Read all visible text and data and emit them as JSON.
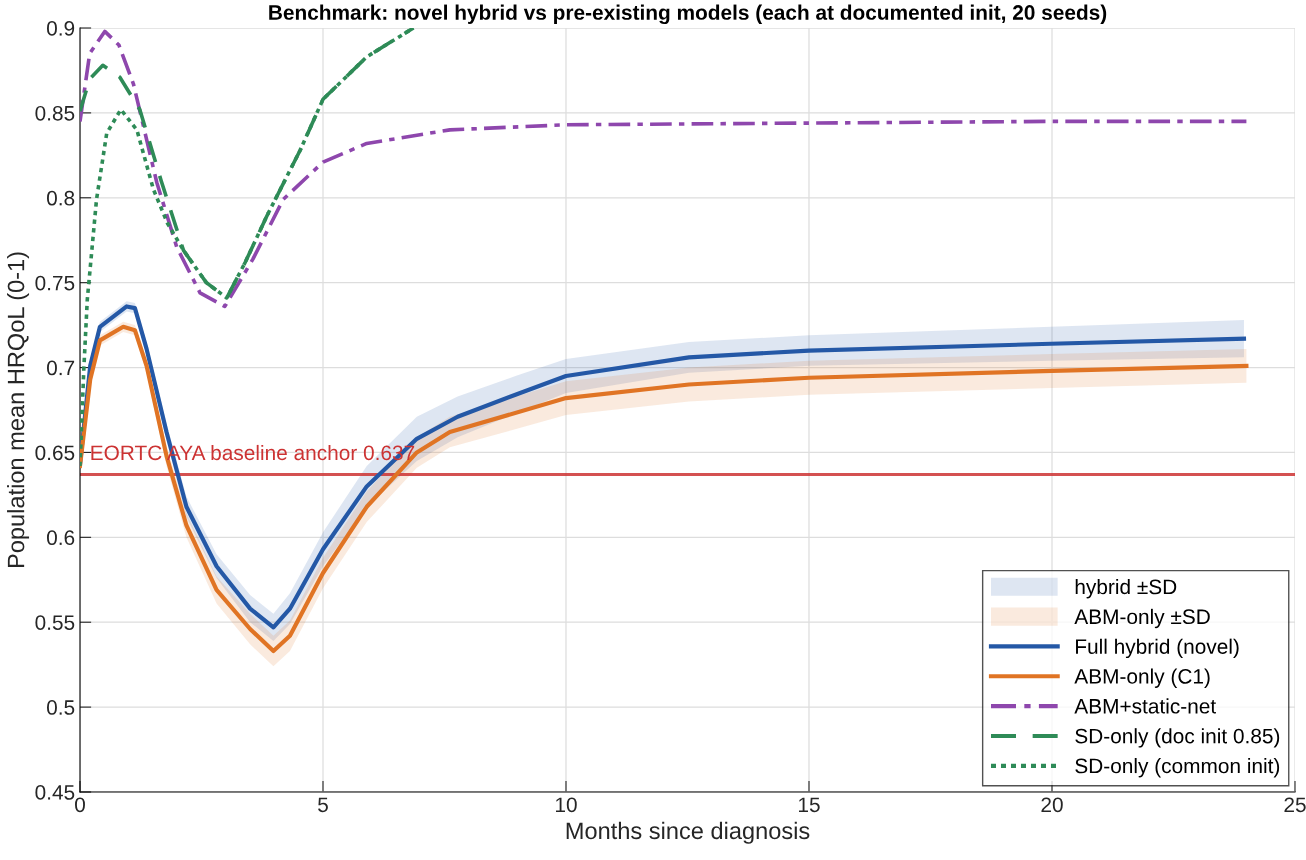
{
  "chart_data": {
    "type": "line",
    "title": "Benchmark: novel hybrid vs pre-existing models (each at documented init, 20 seeds)",
    "xlabel": "Months since diagnosis",
    "ylabel": "Population mean HRQoL (0-1)",
    "xlim": [
      0,
      25
    ],
    "xticks": [
      0,
      5,
      10,
      15,
      20,
      25
    ],
    "ylim": [
      0.45,
      0.9
    ],
    "yticks": [
      0.45,
      0.5,
      0.55,
      0.6,
      0.65,
      0.7,
      0.75,
      0.8,
      0.85,
      0.9
    ],
    "grid": true,
    "legend": "bottom right",
    "annotations": [
      "hybrid ±SD",
      "ABM-only ±SD"
    ],
    "ref_lines": [
      {
        "axis": "y",
        "value": 0.637,
        "label": "EORTC AYA baseline anchor 0.637",
        "color": "#cc3333"
      }
    ],
    "series": [
      {
        "name": "Full hybrid (novel)",
        "line_style": "solid",
        "color": "#2458a6",
        "x": [
          0,
          0.21,
          0.41,
          0.96,
          1.13,
          1.37,
          1.78,
          2.19,
          2.81,
          3.5,
          3.98,
          4.32,
          5.0,
          5.9,
          6.93,
          7.77,
          8.96,
          10.0,
          12.53,
          15.0,
          19.98,
          23.95
        ],
        "values": [
          0.643,
          0.701,
          0.724,
          0.736,
          0.735,
          0.711,
          0.662,
          0.618,
          0.583,
          0.558,
          0.547,
          0.558,
          0.593,
          0.63,
          0.658,
          0.671,
          0.684,
          0.695,
          0.706,
          0.71,
          0.714,
          0.717
        ],
        "lower": [
          0.64,
          0.697,
          0.721,
          0.733,
          0.732,
          0.707,
          0.657,
          0.612,
          0.576,
          0.55,
          0.539,
          0.549,
          0.583,
          0.618,
          0.645,
          0.659,
          0.673,
          0.685,
          0.697,
          0.701,
          0.704,
          0.706
        ],
        "upper": [
          0.646,
          0.705,
          0.727,
          0.739,
          0.738,
          0.715,
          0.667,
          0.624,
          0.59,
          0.566,
          0.555,
          0.567,
          0.603,
          0.642,
          0.671,
          0.683,
          0.695,
          0.705,
          0.715,
          0.719,
          0.724,
          0.728
        ]
      },
      {
        "name": "ABM-only (C1)",
        "line_style": "solid",
        "color": "#e07424",
        "x": [
          0,
          0.21,
          0.41,
          0.89,
          1.13,
          1.37,
          1.78,
          2.19,
          2.81,
          3.5,
          3.98,
          4.32,
          5.0,
          5.9,
          6.93,
          7.61,
          10.0,
          12.53,
          15.0,
          20.0,
          24.0
        ],
        "values": [
          0.642,
          0.693,
          0.716,
          0.724,
          0.722,
          0.701,
          0.648,
          0.607,
          0.569,
          0.546,
          0.533,
          0.542,
          0.579,
          0.618,
          0.65,
          0.662,
          0.682,
          0.69,
          0.694,
          0.698,
          0.701
        ],
        "lower": [
          0.639,
          0.689,
          0.713,
          0.721,
          0.719,
          0.697,
          0.642,
          0.6,
          0.561,
          0.537,
          0.524,
          0.533,
          0.57,
          0.609,
          0.641,
          0.653,
          0.672,
          0.68,
          0.684,
          0.688,
          0.691
        ],
        "upper": [
          0.645,
          0.697,
          0.719,
          0.727,
          0.725,
          0.705,
          0.654,
          0.614,
          0.577,
          0.555,
          0.542,
          0.551,
          0.588,
          0.627,
          0.659,
          0.671,
          0.692,
          0.7,
          0.704,
          0.708,
          0.711
        ]
      },
      {
        "name": "ABM+static-net",
        "line_style": "dashdot",
        "color": "#8e47ad",
        "x": [
          0,
          0.2,
          0.51,
          0.8,
          1.1,
          1.58,
          1.99,
          2.47,
          2.98,
          3.56,
          4.18,
          5.0,
          5.9,
          7.61,
          10,
          15,
          20,
          24
        ],
        "values": [
          0.845,
          0.885,
          0.898,
          0.89,
          0.867,
          0.809,
          0.771,
          0.744,
          0.736,
          0.764,
          0.799,
          0.821,
          0.832,
          0.84,
          0.843,
          0.844,
          0.845,
          0.845
        ]
      },
      {
        "name": "SD-only (doc init 0.85)",
        "line_style": "dashed",
        "color": "#2e8b57",
        "x": [
          0,
          0.2,
          0.47,
          0.82,
          1.23,
          1.67,
          2.13,
          2.6,
          3.02,
          3.4,
          3.84,
          4.53,
          5.0,
          5.9,
          6.86
        ],
        "values": [
          0.851,
          0.87,
          0.878,
          0.871,
          0.852,
          0.81,
          0.769,
          0.75,
          0.741,
          0.762,
          0.789,
          0.828,
          0.858,
          0.883,
          0.9
        ]
      },
      {
        "name": "SD-only (common init)",
        "line_style": "dotted",
        "color": "#2e8b57",
        "x": [
          0,
          0.08,
          0.15,
          0.34,
          0.55,
          0.84,
          1.17,
          1.51,
          1.8,
          2.13,
          2.6,
          3.02,
          3.4,
          3.84,
          4.53,
          5.0,
          5.9,
          6.86
        ],
        "values": [
          0.642,
          0.7,
          0.74,
          0.799,
          0.838,
          0.852,
          0.84,
          0.805,
          0.785,
          0.769,
          0.75,
          0.741,
          0.762,
          0.789,
          0.828,
          0.858,
          0.883,
          0.9
        ]
      }
    ]
  }
}
